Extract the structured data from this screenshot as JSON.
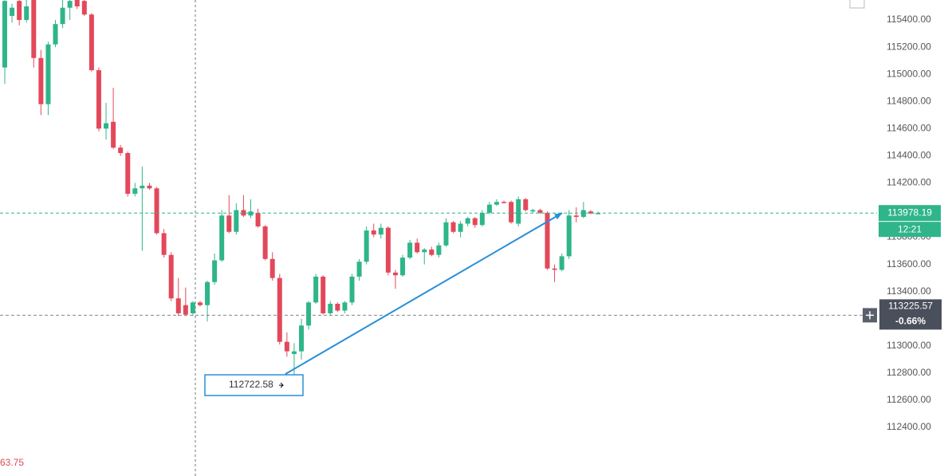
{
  "chart_data": {
    "type": "candlestick",
    "up_color": "#2fb58a",
    "down_color": "#e3485a",
    "open": [
      115050,
      115430,
      115540,
      115400,
      115547,
      115120,
      114780,
      115220,
      115370,
      115490,
      115547,
      115540,
      115440,
      115030,
      114600,
      114650,
      114460,
      114420,
      114120,
      114160,
      114180,
      114160,
      113830,
      113670,
      113350,
      113300,
      113240,
      113320,
      113300,
      113470,
      113630,
      113960,
      113840,
      114000,
      113960,
      113980,
      113880,
      113640,
      113500,
      113030,
      112940,
      112960,
      113150,
      113320,
      113510,
      113240,
      113310,
      113260,
      113320,
      113510,
      113620,
      113850,
      113820,
      113870,
      113540,
      113520,
      113650,
      113760,
      113690,
      113710,
      113670,
      113740,
      113910,
      113840,
      113900,
      113940,
      113890,
      113980,
      114040,
      114060,
      114060,
      113900,
      114080,
      113990,
      114000,
      113980,
      113570,
      113560,
      113660,
      113960,
      113950,
      113990,
      113975
    ],
    "high": [
      115547,
      115520,
      115547,
      115547,
      115547,
      115180,
      115240,
      115400,
      115547,
      115547,
      115547,
      115547,
      115450,
      115050,
      114790,
      114900,
      114480,
      114430,
      114200,
      114320,
      114200,
      114170,
      113860,
      113690,
      113500,
      113430,
      113330,
      113330,
      113480,
      113680,
      114000,
      114110,
      114050,
      114110,
      114080,
      114010,
      113890,
      113690,
      113530,
      113100,
      113020,
      113200,
      113330,
      113530,
      113520,
      113330,
      113320,
      113330,
      113530,
      113640,
      113880,
      113900,
      113900,
      113880,
      113560,
      113670,
      113780,
      113790,
      113720,
      113730,
      113760,
      113940,
      113920,
      113920,
      113950,
      113950,
      114000,
      114060,
      114080,
      114070,
      114070,
      114100,
      114090,
      114010,
      114010,
      113990,
      113600,
      113680,
      114000,
      114020,
      114060,
      114000,
      113990
    ],
    "low": [
      114930,
      115380,
      115360,
      115380,
      115050,
      114700,
      114700,
      115200,
      115340,
      115400,
      115480,
      115430,
      115020,
      114580,
      114520,
      114450,
      114400,
      114100,
      114100,
      113700,
      114150,
      113820,
      113650,
      113330,
      113220,
      113220,
      113220,
      113290,
      113180,
      113450,
      113620,
      113830,
      113820,
      113950,
      113940,
      113870,
      113630,
      113480,
      113010,
      112920,
      112722.58,
      112900,
      113120,
      113310,
      113230,
      113220,
      113250,
      113240,
      113300,
      113480,
      113600,
      113800,
      113790,
      113520,
      113420,
      113510,
      113640,
      113680,
      113600,
      113660,
      113650,
      113730,
      113830,
      113800,
      113880,
      113870,
      113880,
      113970,
      114030,
      114050,
      113900,
      113880,
      113990,
      113980,
      113970,
      113560,
      113470,
      113550,
      113640,
      113910,
      113940,
      113970,
      113970
    ],
    "close": [
      115540,
      115490,
      115400,
      115500,
      115120,
      114780,
      115220,
      115370,
      115490,
      115540,
      115500,
      115440,
      115030,
      114600,
      114640,
      114460,
      114420,
      114120,
      114160,
      114180,
      114160,
      113830,
      113670,
      113350,
      113240,
      113230,
      113320,
      113300,
      113470,
      113630,
      113960,
      113840,
      114000,
      113960,
      113990,
      113880,
      113640,
      113500,
      113030,
      112960,
      112960,
      113150,
      113320,
      113510,
      113240,
      113310,
      113260,
      113320,
      113510,
      113620,
      113850,
      113820,
      113870,
      113540,
      113520,
      113650,
      113760,
      113690,
      113710,
      113670,
      113740,
      113910,
      113840,
      113900,
      113940,
      113890,
      113980,
      114040,
      114060,
      114055,
      113910,
      114080,
      114000,
      114000,
      113980,
      113570,
      113560,
      113660,
      113960,
      113950,
      114000,
      113975,
      113978.19
    ],
    "ylim": [
      112042,
      115547
    ],
    "yticks": [
      {
        "value": 112400,
        "label": "112400.00"
      },
      {
        "value": 112600,
        "label": "112600.00"
      },
      {
        "value": 112800,
        "label": "112800.00"
      },
      {
        "value": 113000,
        "label": "113000.00"
      },
      {
        "value": 113200,
        "label": "113200.00"
      },
      {
        "value": 113400,
        "label": "113400.00"
      },
      {
        "value": 113600,
        "label": "113600.00"
      },
      {
        "value": 113800,
        "label": "113800.00"
      },
      {
        "value": 114000,
        "label": "114000.00"
      },
      {
        "value": 114200,
        "label": "114200.00"
      },
      {
        "value": 114400,
        "label": "114400.00"
      },
      {
        "value": 114600,
        "label": "114600.00"
      },
      {
        "value": 114800,
        "label": "114800.00"
      },
      {
        "value": 115000,
        "label": "115000.00"
      },
      {
        "value": 115200,
        "label": "115200.00"
      },
      {
        "value": 115400,
        "label": "115400.00"
      }
    ],
    "last_price": 113978.19,
    "countdown": "12:21",
    "reference_price": 113225.57,
    "reference_change": "-0.66%",
    "low_annotation": 112722.58,
    "corner_label": "63.75"
  }
}
